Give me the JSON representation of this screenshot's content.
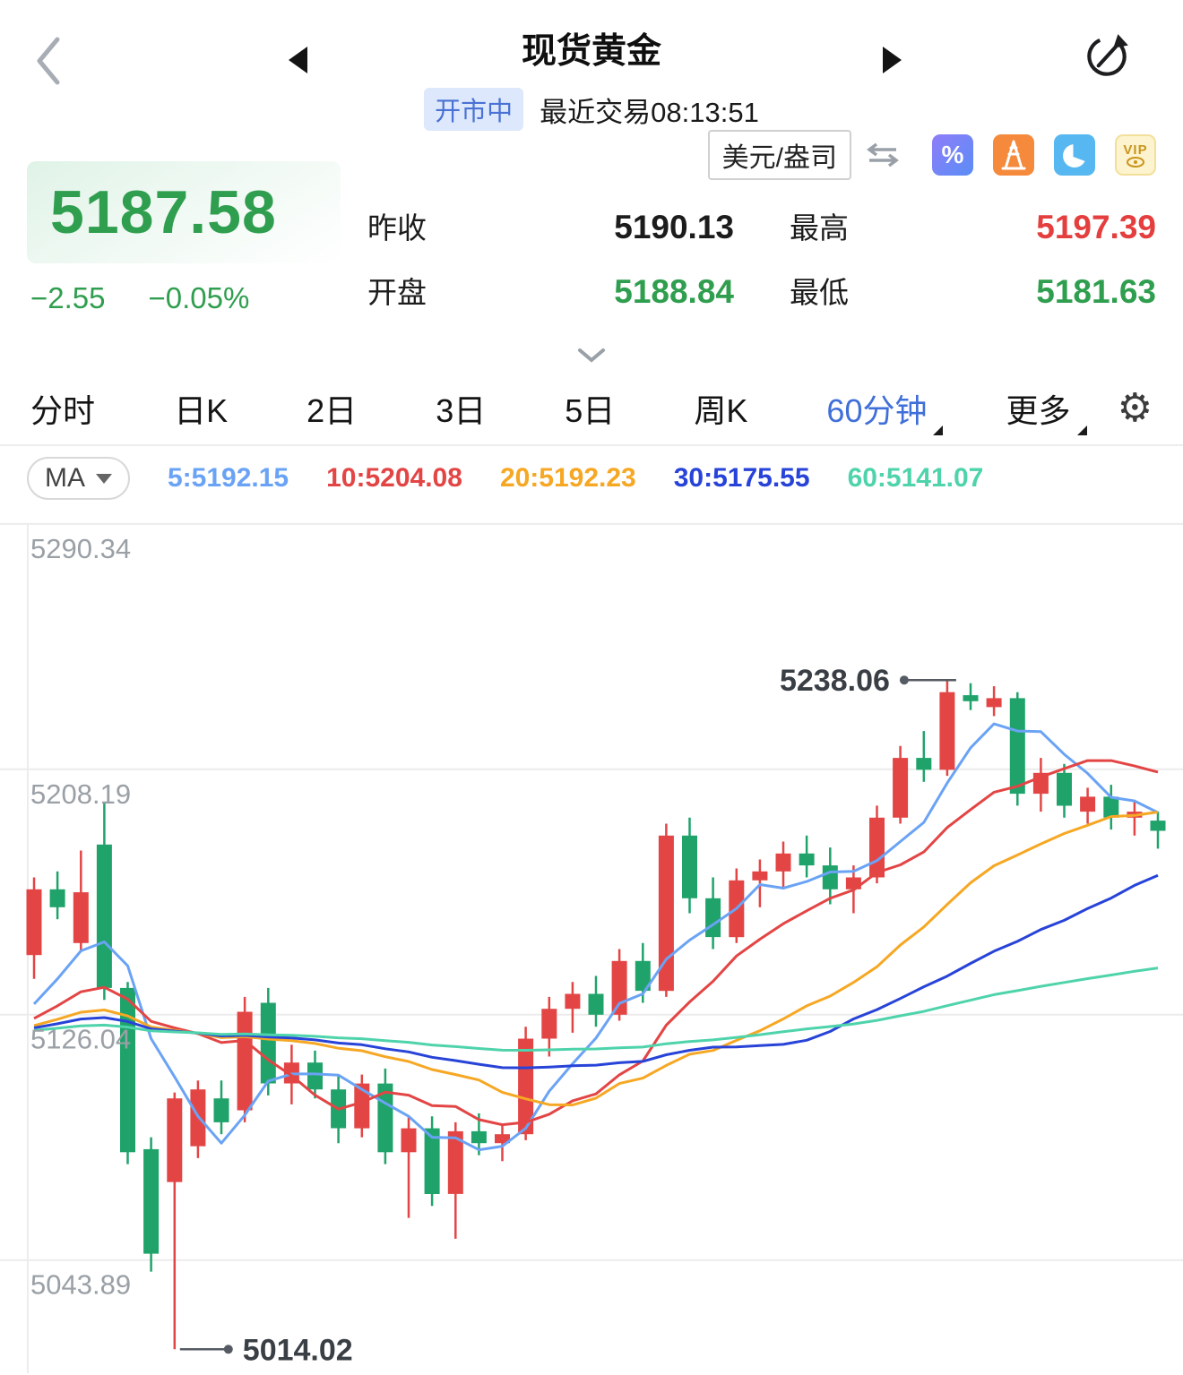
{
  "colors": {
    "up": "#e34545",
    "down": "#1fa36a",
    "accent_blue": "#3f6fd8",
    "text_green": "#2f9e4e",
    "text_red": "#e53e3e"
  },
  "header": {
    "title": "现货黄金",
    "status_badge": "开市中",
    "last_trade": "最近交易08:13:51",
    "icons": {
      "back": "chevron-left",
      "prev": "triangle-left",
      "next": "triangle-right",
      "refresh": "refresh-circular-arrow"
    }
  },
  "quote": {
    "price": "5187.58",
    "price_color": "#2f9e4e",
    "change": "−2.55",
    "change_pct": "−0.05%",
    "unit": "美元/盎司",
    "quick_icons": [
      "percent-icon",
      "signal-tower-icon",
      "pie-chart-icon",
      "vip-icon"
    ],
    "stats": [
      {
        "key": "prev-close",
        "label": "昨收",
        "value": "5190.13",
        "color": "#1c1c1c"
      },
      {
        "key": "high",
        "label": "最高",
        "value": "5197.39",
        "color": "#e53e3e"
      },
      {
        "key": "open",
        "label": "开盘",
        "value": "5188.84",
        "color": "#2f9e4e"
      },
      {
        "key": "low",
        "label": "最低",
        "value": "5181.63",
        "color": "#2f9e4e"
      }
    ]
  },
  "tabs": [
    {
      "key": "time-share",
      "label": "分时",
      "active": false,
      "caret": false
    },
    {
      "key": "daily-k",
      "label": "日K",
      "active": false,
      "caret": false
    },
    {
      "key": "2day",
      "label": "2日",
      "active": false,
      "caret": false
    },
    {
      "key": "3day",
      "label": "3日",
      "active": false,
      "caret": false
    },
    {
      "key": "5day",
      "label": "5日",
      "active": false,
      "caret": false
    },
    {
      "key": "weekly-k",
      "label": "周K",
      "active": false,
      "caret": false
    },
    {
      "key": "60min",
      "label": "60分钟",
      "active": true,
      "caret": true
    },
    {
      "key": "more",
      "label": "更多",
      "active": false,
      "caret": true
    }
  ],
  "settings_icon": "gear",
  "ma_bar": {
    "selector": "MA",
    "items": [
      {
        "period": 5,
        "label": "5:5192.15",
        "color": "#6aa3f5"
      },
      {
        "period": 10,
        "label": "10:5204.08",
        "color": "#e34545"
      },
      {
        "period": 20,
        "label": "20:5192.23",
        "color": "#f6a723"
      },
      {
        "period": 30,
        "label": "30:5175.55",
        "color": "#2743d8"
      },
      {
        "period": 60,
        "label": "60:5141.07",
        "color": "#4ed3ab"
      }
    ]
  },
  "chart_data": {
    "type": "candlestick",
    "period": "60min",
    "y_range": [
      5006,
      5296
    ],
    "y_gridlines": [
      5290.34,
      5208.19,
      5126.04,
      5043.89
    ],
    "up_color": "#e34545",
    "down_color": "#1fa36a",
    "history_pad": 5120,
    "ma_lines": [
      {
        "period": 5,
        "color": "#6aa3f5"
      },
      {
        "period": 10,
        "color": "#e34545"
      },
      {
        "period": 20,
        "color": "#f6a723"
      },
      {
        "period": 30,
        "color": "#2743d8"
      },
      {
        "period": 60,
        "color": "#4ed3ab"
      }
    ],
    "annotations": {
      "high": {
        "label": "5238.06",
        "value": 5238.06,
        "candle_index": 39
      },
      "low": {
        "label": "5014.02",
        "value": 5014.02,
        "candle_index": 6
      }
    },
    "candles_format": [
      "open",
      "high",
      "low",
      "close"
    ],
    "candles": [
      [
        5146,
        5172,
        5138,
        5168
      ],
      [
        5168,
        5174,
        5158,
        5162
      ],
      [
        5150,
        5181,
        5147,
        5167
      ],
      [
        5183,
        5197,
        5131,
        5135
      ],
      [
        5135,
        5137,
        5076,
        5080
      ],
      [
        5081,
        5085,
        5040,
        5046
      ],
      [
        5070,
        5100,
        5014.02,
        5098
      ],
      [
        5082,
        5104,
        5078,
        5101
      ],
      [
        5098,
        5104,
        5086,
        5090
      ],
      [
        5094,
        5132,
        5090,
        5127
      ],
      [
        5130,
        5135,
        5099,
        5103
      ],
      [
        5103,
        5116,
        5096,
        5110
      ],
      [
        5110,
        5114,
        5098,
        5101
      ],
      [
        5101,
        5106,
        5083,
        5088
      ],
      [
        5088,
        5106,
        5085,
        5103
      ],
      [
        5103,
        5108,
        5076,
        5080
      ],
      [
        5080,
        5092,
        5058,
        5088
      ],
      [
        5088,
        5092,
        5062,
        5066
      ],
      [
        5066,
        5090,
        5051,
        5087
      ],
      [
        5087,
        5093,
        5079,
        5083
      ],
      [
        5083,
        5089,
        5077,
        5086
      ],
      [
        5086,
        5122,
        5084,
        5118
      ],
      [
        5118,
        5132,
        5112,
        5128
      ],
      [
        5128,
        5137,
        5120,
        5133
      ],
      [
        5133,
        5139,
        5122,
        5126
      ],
      [
        5126,
        5148,
        5124,
        5144
      ],
      [
        5144,
        5150,
        5130,
        5134
      ],
      [
        5134,
        5190,
        5132,
        5186
      ],
      [
        5186,
        5192,
        5160,
        5165
      ],
      [
        5165,
        5172,
        5148,
        5152
      ],
      [
        5152,
        5175,
        5150,
        5171
      ],
      [
        5171,
        5178,
        5162,
        5174
      ],
      [
        5174,
        5184,
        5168,
        5180
      ],
      [
        5180,
        5186,
        5172,
        5176
      ],
      [
        5176,
        5182,
        5163,
        5168
      ],
      [
        5168,
        5176,
        5160,
        5172
      ],
      [
        5172,
        5196,
        5170,
        5192
      ],
      [
        5192,
        5216,
        5190,
        5212
      ],
      [
        5212,
        5221,
        5204,
        5208
      ],
      [
        5208,
        5238.06,
        5206,
        5234
      ],
      [
        5233,
        5237,
        5228,
        5231
      ],
      [
        5229,
        5236,
        5226,
        5232
      ],
      [
        5232,
        5234,
        5196,
        5200
      ],
      [
        5200,
        5212,
        5194,
        5207
      ],
      [
        5207,
        5210,
        5192,
        5196
      ],
      [
        5194,
        5202,
        5190,
        5199
      ],
      [
        5199,
        5203,
        5188,
        5192
      ],
      [
        5192,
        5197.39,
        5186,
        5194
      ],
      [
        5191,
        5194,
        5181.63,
        5187.58
      ]
    ]
  }
}
